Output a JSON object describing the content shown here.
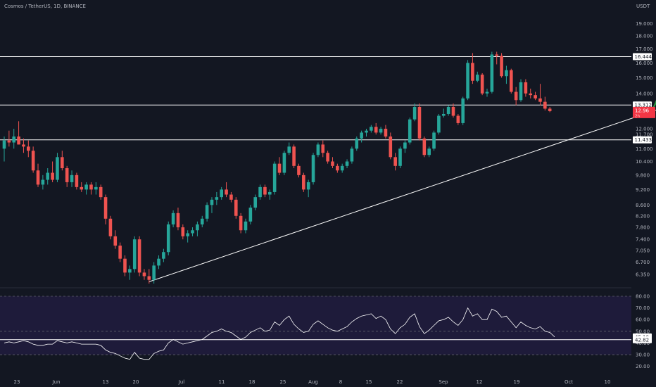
{
  "header": {
    "symbol_info": "Cosmos / TetherUS, 1D, BINANCE",
    "axis_unit": "USDT"
  },
  "colors": {
    "background": "#131722",
    "rsi_band": "#1e1b3a",
    "up": "#26a69a",
    "down": "#ef5350",
    "line": "#ffffff",
    "axis_text": "#b2b5be",
    "arrow": "#1e8c2c",
    "price_tag": "#f23645"
  },
  "chart_data": [
    {
      "type": "candlestick",
      "x_tick_labels": [
        "23",
        "Jun",
        "13",
        "20",
        "Jul",
        "11",
        "18",
        "25",
        "Aug",
        "8",
        "15",
        "22",
        "Sep",
        "12",
        "19",
        "Oct",
        "10"
      ],
      "y_tick_labels": [
        "6.350",
        "6.700",
        "7.050",
        "7.400",
        "7.800",
        "8.200",
        "8.600",
        "9.200",
        "9.800",
        "10.400",
        "11.000",
        "11.700",
        "12.000",
        "13.000",
        "14.000",
        "15.000",
        "16.000",
        "17.000",
        "18.000",
        "19.000"
      ],
      "ylim": [
        6.1,
        20.3
      ],
      "y_scale": "log",
      "horizontal_levels": [
        {
          "value": 16.444,
          "label": "16.444"
        },
        {
          "value": 13.312,
          "label": "13.312"
        },
        {
          "value": 11.433,
          "label": "11.433"
        }
      ],
      "current_price": {
        "value": 12.96,
        "label": "12.96",
        "sub_label": "2h"
      },
      "trendline": {
        "from": {
          "bar": 30,
          "price": 6.15
        },
        "to": {
          "bar": 138,
          "price": 13.3
        }
      },
      "arrow": {
        "from": {
          "bar": 134,
          "price": 12.9
        },
        "to": {
          "bar": 141,
          "price": 17.6
        }
      },
      "start_label": "23",
      "bars": [
        [
          11.0,
          11.6,
          10.4,
          11.4
        ],
        [
          11.4,
          11.9,
          11.1,
          11.3
        ],
        [
          11.3,
          12.0,
          11.0,
          11.6
        ],
        [
          11.6,
          12.4,
          11.2,
          11.2
        ],
        [
          11.2,
          11.5,
          10.8,
          11.1
        ],
        [
          11.1,
          11.4,
          10.6,
          10.9
        ],
        [
          10.9,
          11.1,
          9.9,
          10.0
        ],
        [
          10.0,
          10.3,
          9.3,
          9.4
        ],
        [
          9.4,
          9.8,
          9.2,
          9.6
        ],
        [
          9.6,
          10.1,
          9.4,
          9.9
        ],
        [
          9.9,
          10.4,
          9.5,
          9.6
        ],
        [
          9.6,
          10.8,
          9.5,
          10.6
        ],
        [
          10.6,
          10.9,
          10.0,
          10.1
        ],
        [
          10.1,
          10.2,
          9.3,
          9.5
        ],
        [
          9.5,
          10.0,
          9.3,
          9.8
        ],
        [
          9.8,
          9.9,
          9.2,
          9.3
        ],
        [
          9.3,
          9.5,
          9.1,
          9.2
        ],
        [
          9.2,
          9.5,
          9.0,
          9.4
        ],
        [
          9.4,
          9.5,
          9.0,
          9.2
        ],
        [
          9.2,
          9.5,
          9.0,
          9.3
        ],
        [
          9.3,
          9.4,
          8.8,
          8.9
        ],
        [
          8.9,
          9.0,
          7.9,
          8.1
        ],
        [
          8.1,
          8.2,
          7.4,
          7.5
        ],
        [
          7.5,
          7.7,
          7.1,
          7.2
        ],
        [
          7.2,
          7.3,
          6.7,
          6.8
        ],
        [
          6.8,
          6.9,
          6.3,
          6.4
        ],
        [
          6.4,
          6.6,
          6.2,
          6.5
        ],
        [
          6.5,
          7.5,
          6.4,
          7.4
        ],
        [
          7.4,
          7.5,
          6.3,
          6.4
        ],
        [
          6.4,
          6.5,
          6.2,
          6.3
        ],
        [
          6.3,
          6.5,
          6.1,
          6.2
        ],
        [
          6.2,
          6.7,
          6.1,
          6.6
        ],
        [
          6.6,
          6.9,
          6.5,
          6.8
        ],
        [
          6.8,
          7.1,
          6.7,
          7.0
        ],
        [
          7.0,
          8.0,
          6.9,
          7.9
        ],
        [
          7.9,
          8.4,
          7.8,
          8.3
        ],
        [
          8.3,
          8.5,
          7.7,
          7.8
        ],
        [
          7.8,
          7.9,
          7.4,
          7.5
        ],
        [
          7.5,
          7.7,
          7.3,
          7.6
        ],
        [
          7.6,
          7.8,
          7.5,
          7.7
        ],
        [
          7.7,
          8.0,
          7.5,
          7.9
        ],
        [
          7.9,
          8.2,
          7.8,
          8.1
        ],
        [
          8.1,
          8.7,
          8.0,
          8.6
        ],
        [
          8.6,
          8.9,
          8.3,
          8.8
        ],
        [
          8.8,
          9.1,
          8.6,
          8.9
        ],
        [
          8.9,
          9.3,
          8.8,
          9.2
        ],
        [
          9.2,
          9.5,
          8.9,
          9.0
        ],
        [
          9.0,
          9.1,
          8.7,
          8.8
        ],
        [
          8.8,
          8.9,
          8.1,
          8.2
        ],
        [
          8.2,
          8.3,
          7.6,
          7.7
        ],
        [
          7.7,
          8.1,
          7.6,
          8.0
        ],
        [
          8.0,
          8.6,
          7.9,
          8.5
        ],
        [
          8.5,
          9.0,
          8.4,
          8.9
        ],
        [
          8.9,
          9.4,
          8.8,
          9.3
        ],
        [
          9.3,
          9.4,
          8.9,
          9.0
        ],
        [
          9.0,
          9.2,
          8.8,
          9.1
        ],
        [
          9.1,
          10.4,
          9.0,
          10.3
        ],
        [
          10.3,
          10.6,
          9.8,
          9.9
        ],
        [
          9.9,
          10.9,
          9.8,
          10.8
        ],
        [
          10.8,
          11.3,
          10.7,
          11.1
        ],
        [
          11.1,
          11.2,
          10.1,
          10.2
        ],
        [
          10.2,
          10.3,
          9.7,
          9.8
        ],
        [
          9.8,
          9.9,
          9.1,
          9.2
        ],
        [
          9.2,
          9.6,
          8.9,
          9.5
        ],
        [
          9.5,
          10.8,
          9.4,
          10.7
        ],
        [
          10.7,
          11.3,
          10.6,
          11.2
        ],
        [
          11.2,
          11.4,
          10.6,
          10.8
        ],
        [
          10.8,
          10.9,
          10.3,
          10.4
        ],
        [
          10.4,
          10.6,
          10.1,
          10.2
        ],
        [
          10.2,
          10.3,
          9.9,
          10.0
        ],
        [
          10.0,
          10.3,
          9.9,
          10.2
        ],
        [
          10.2,
          10.5,
          10.1,
          10.4
        ],
        [
          10.4,
          11.1,
          10.3,
          11.0
        ],
        [
          11.0,
          11.6,
          10.9,
          11.5
        ],
        [
          11.5,
          11.9,
          11.3,
          11.8
        ],
        [
          11.8,
          12.0,
          11.6,
          11.9
        ],
        [
          11.9,
          12.2,
          11.8,
          12.1
        ],
        [
          12.1,
          12.3,
          11.7,
          11.8
        ],
        [
          11.8,
          12.1,
          11.7,
          12.0
        ],
        [
          12.0,
          12.2,
          11.5,
          11.6
        ],
        [
          11.6,
          11.8,
          10.5,
          10.6
        ],
        [
          10.6,
          10.8,
          10.0,
          10.2
        ],
        [
          10.2,
          11.1,
          10.1,
          11.0
        ],
        [
          11.0,
          11.4,
          10.8,
          11.3
        ],
        [
          11.3,
          12.6,
          11.2,
          12.5
        ],
        [
          12.5,
          13.4,
          12.4,
          13.2
        ],
        [
          13.2,
          13.4,
          11.4,
          11.5
        ],
        [
          11.5,
          11.6,
          10.6,
          10.7
        ],
        [
          10.7,
          11.1,
          10.6,
          11.0
        ],
        [
          11.0,
          11.9,
          10.9,
          11.8
        ],
        [
          11.8,
          12.8,
          11.7,
          12.7
        ],
        [
          12.7,
          13.1,
          12.6,
          12.8
        ],
        [
          12.8,
          13.3,
          12.7,
          13.2
        ],
        [
          13.2,
          13.4,
          12.6,
          12.7
        ],
        [
          12.7,
          12.8,
          12.2,
          12.3
        ],
        [
          12.3,
          13.8,
          12.2,
          13.7
        ],
        [
          13.7,
          16.2,
          13.6,
          16.0
        ],
        [
          16.0,
          16.7,
          14.6,
          14.8
        ],
        [
          14.8,
          15.4,
          14.7,
          15.2
        ],
        [
          15.2,
          15.3,
          13.9,
          14.0
        ],
        [
          14.0,
          14.3,
          13.8,
          14.1
        ],
        [
          14.1,
          16.8,
          14.0,
          16.6
        ],
        [
          16.6,
          16.8,
          15.9,
          16.5
        ],
        [
          16.5,
          16.7,
          15.0,
          15.1
        ],
        [
          15.1,
          15.8,
          14.6,
          15.5
        ],
        [
          15.5,
          15.6,
          14.0,
          14.1
        ],
        [
          14.1,
          14.4,
          13.3,
          13.6
        ],
        [
          13.6,
          14.9,
          13.5,
          14.7
        ],
        [
          14.7,
          14.9,
          13.8,
          14.0
        ],
        [
          14.0,
          14.3,
          13.7,
          13.9
        ],
        [
          13.9,
          14.1,
          13.6,
          13.7
        ],
        [
          13.7,
          14.6,
          13.3,
          13.5
        ],
        [
          13.5,
          13.8,
          13.0,
          13.1
        ],
        [
          13.1,
          13.2,
          12.9,
          12.96
        ]
      ]
    },
    {
      "type": "line",
      "name": "RSI",
      "y_tick_labels": [
        "20.00",
        "30.00",
        "40.00",
        "50.00",
        "60.00",
        "70.00",
        "80.00"
      ],
      "ylim": [
        18,
        83
      ],
      "band": [
        30,
        80
      ],
      "horizontal_levels": [
        {
          "value": 42.82,
          "label": "42.82"
        }
      ],
      "current_value": {
        "value": 45.19,
        "label": "45.19"
      },
      "values": [
        40,
        41,
        40,
        41,
        42,
        41,
        39,
        38,
        38,
        39,
        39,
        42,
        41,
        40,
        41,
        40,
        39,
        39,
        39,
        39,
        38,
        34,
        32,
        31,
        29,
        27,
        26,
        32,
        27,
        26,
        26,
        31,
        33,
        34,
        40,
        43,
        41,
        39,
        40,
        41,
        42,
        43,
        46,
        49,
        50,
        52,
        50,
        49,
        46,
        43,
        45,
        49,
        51,
        53,
        50,
        51,
        58,
        55,
        60,
        63,
        56,
        52,
        49,
        50,
        56,
        59,
        56,
        53,
        51,
        50,
        52,
        54,
        58,
        61,
        63,
        64,
        65,
        61,
        63,
        60,
        52,
        48,
        53,
        56,
        62,
        65,
        54,
        48,
        51,
        55,
        59,
        60,
        62,
        58,
        55,
        60,
        70,
        63,
        65,
        60,
        60,
        69,
        67,
        62,
        63,
        58,
        53,
        58,
        55,
        53,
        52,
        54,
        50,
        49,
        45.19
      ]
    }
  ]
}
